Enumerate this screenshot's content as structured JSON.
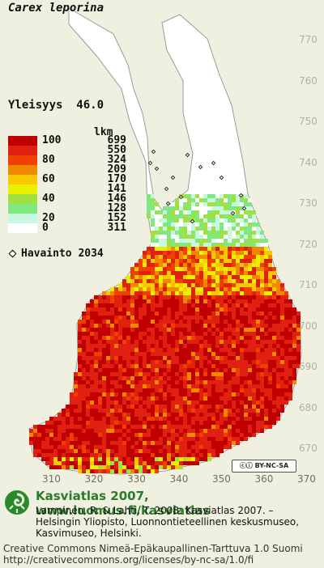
{
  "map": {
    "title": "Carex leporina",
    "frequency_label": "Yleisyys",
    "frequency_value": "46.0",
    "count_header": "lkm",
    "legend": [
      {
        "value": "100",
        "count": "699",
        "color": "#c00000"
      },
      {
        "value": "",
        "count": "550",
        "color": "#e02010"
      },
      {
        "value": "80",
        "count": "324",
        "color": "#f04000"
      },
      {
        "value": "",
        "count": "209",
        "color": "#f08800"
      },
      {
        "value": "60",
        "count": "170",
        "color": "#f8c800"
      },
      {
        "value": "",
        "count": "141",
        "color": "#e8f000"
      },
      {
        "value": "40",
        "count": "146",
        "color": "#a0e040"
      },
      {
        "value": "",
        "count": "128",
        "color": "#80e880"
      },
      {
        "value": "20",
        "count": "152",
        "color": "#c8f8e0"
      },
      {
        "value": "0",
        "count": "311",
        "color": "#ffffff"
      }
    ],
    "observation_label": "Havainto",
    "observation_count": "2034",
    "y_axis": [
      "770",
      "760",
      "750",
      "740",
      "730",
      "720",
      "710",
      "700",
      "690",
      "680",
      "670"
    ],
    "x_axis": [
      "310",
      "320",
      "330",
      "340",
      "350",
      "360",
      "370"
    ],
    "license_badge": "BY-NC-SA"
  },
  "footer": {
    "title": "Kasviatlas 2007, www.luomus.fi/kasviatlas",
    "citation": "Lampinen, R. & Lahti, T. 2008: Kasviatlas 2007. – Helsingin Yliopisto, Luonnontieteellinen keskusmuseo, Kasvimuseo, Helsinki.",
    "license_line1": "Creative Commons Nimeä-Epäkaupallinen-Tarttuva 1.0 Suomi",
    "license_line2": "http://creativecommons.org/licenses/by-nc-sa/1.0/fi"
  },
  "colors": {
    "background": "#f0f0e0",
    "land": "#ffffff",
    "accent": "#2a7a2a"
  }
}
